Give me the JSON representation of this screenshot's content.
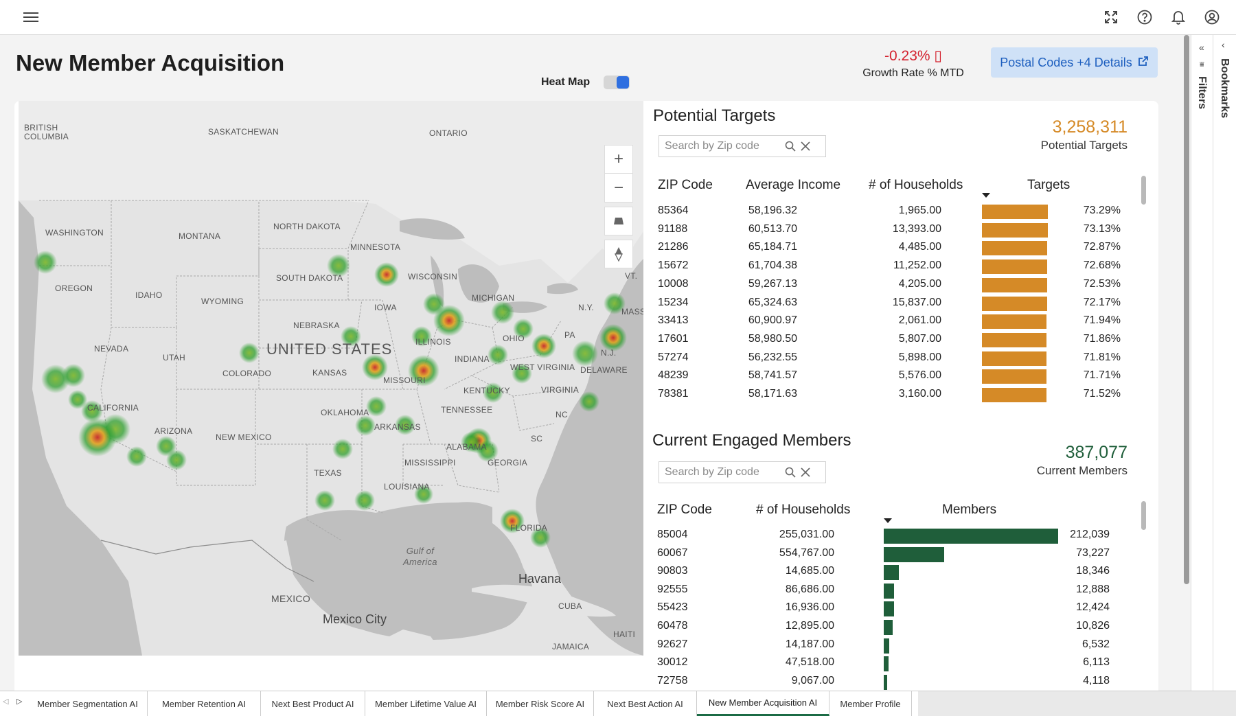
{
  "header": {
    "menu_icon": "hamburger-menu-icon",
    "icons": [
      "fullscreen-icon",
      "help-icon",
      "bell-icon",
      "user-icon"
    ]
  },
  "page": {
    "title": "New Member Acquisition",
    "growth_value": "-0.23% ▯",
    "growth_label": "Growth Rate % MTD",
    "details_button": "Postal Codes +4 Details",
    "details_icon": "external-link-icon"
  },
  "map": {
    "heat_map_label": "Heat Map",
    "heat_map_on": true,
    "labels": {
      "british_columbia": "BRITISH\nCOLUMBIA",
      "saskatchewan": "SASKATCHEWAN",
      "ontario": "ONTARIO",
      "washington": "WASHINGTON",
      "montana": "MONTANA",
      "north_dakota": "NORTH DAKOTA",
      "minnesota": "MINNESOTA",
      "oregon": "OREGON",
      "idaho": "IDAHO",
      "south_dakota": "SOUTH DAKOTA",
      "wisconsin": "WISCONSIN",
      "michigan": "MICHIGAN",
      "vt": "VT.",
      "wyoming": "WYOMING",
      "iowa": "IOWA",
      "ny": "N.Y.",
      "mass": "MASS",
      "nebraska": "NEBRASKA",
      "nevada": "NEVADA",
      "united_states": "UNITED STATES",
      "illinois": "ILLINOIS",
      "ohio": "OHIO",
      "pa": "PA",
      "utah": "UTAH",
      "nj": "N.J.",
      "colorado": "COLORADO",
      "kansas": "KANSAS",
      "indiana": "INDIANA",
      "west_virginia": "WEST VIRGINIA",
      "delaware": "DELAWARE",
      "missouri": "MISSOURI",
      "california": "CALIFORNIA",
      "kentucky": "KENTUCKY",
      "virginia": "VIRGINIA",
      "oklahoma": "OKLAHOMA",
      "tennessee": "TENNESSEE",
      "nc": "NC",
      "arizona": "ARIZONA",
      "arkansas": "ARKANSAS",
      "new_mexico": "NEW MEXICO",
      "sc": "SC",
      "alabama": "ALABAMA",
      "mississippi": "MISSISSIPPI",
      "georgia": "GEORGIA",
      "texas": "TEXAS",
      "louisiana": "LOUISIANA",
      "florida": "FLORIDA",
      "gulf": "Gulf of\nAmerica",
      "havana": "Havana",
      "mexico": "MEXICO",
      "cuba": "CUBA",
      "mexico_city": "Mexico City",
      "haiti": "HAITI",
      "jamaica": "JAMAICA"
    },
    "controls": [
      "zoom-in-icon",
      "zoom-out-icon",
      "tilt-icon",
      "compass-icon"
    ]
  },
  "potential_targets": {
    "title": "Potential Targets",
    "kpi_value": "3,258,311",
    "kpi_label": "Potential Targets",
    "kpi_color": "#d58a27",
    "search_placeholder": "Search by Zip code",
    "columns": [
      "ZIP Code",
      "Average Income",
      "# of Households",
      "Targets"
    ],
    "rows": [
      {
        "zip": "85364",
        "income": "58,196.32",
        "households": "1,965.00",
        "targets": "73.29%",
        "pct": 73.29
      },
      {
        "zip": "91188",
        "income": "60,513.70",
        "households": "13,393.00",
        "targets": "73.13%",
        "pct": 73.13
      },
      {
        "zip": "21286",
        "income": "65,184.71",
        "households": "4,485.00",
        "targets": "72.87%",
        "pct": 72.87
      },
      {
        "zip": "15672",
        "income": "61,704.38",
        "households": "11,252.00",
        "targets": "72.68%",
        "pct": 72.68
      },
      {
        "zip": "10008",
        "income": "59,267.13",
        "households": "4,205.00",
        "targets": "72.53%",
        "pct": 72.53
      },
      {
        "zip": "15234",
        "income": "65,324.63",
        "households": "15,837.00",
        "targets": "72.17%",
        "pct": 72.17
      },
      {
        "zip": "33413",
        "income": "60,900.97",
        "households": "2,061.00",
        "targets": "71.94%",
        "pct": 71.94
      },
      {
        "zip": "17601",
        "income": "58,980.50",
        "households": "5,807.00",
        "targets": "71.86%",
        "pct": 71.86
      },
      {
        "zip": "57274",
        "income": "56,232.55",
        "households": "5,898.00",
        "targets": "71.81%",
        "pct": 71.81
      },
      {
        "zip": "48239",
        "income": "58,741.57",
        "households": "5,576.00",
        "targets": "71.71%",
        "pct": 71.71
      },
      {
        "zip": "78381",
        "income": "58,171.63",
        "households": "3,160.00",
        "targets": "71.52%",
        "pct": 71.52
      }
    ]
  },
  "current_members": {
    "title": "Current Engaged Members",
    "kpi_value": "387,077",
    "kpi_label": "Current Members",
    "kpi_color": "#1f5e3a",
    "search_placeholder": "Search by Zip code",
    "columns": [
      "ZIP Code",
      "# of Households",
      "Members"
    ],
    "rows": [
      {
        "zip": "85004",
        "households": "255,031.00",
        "members": "212,039",
        "value": 212039
      },
      {
        "zip": "60067",
        "households": "554,767.00",
        "members": "73,227",
        "value": 73227
      },
      {
        "zip": "90803",
        "households": "14,685.00",
        "members": "18,346",
        "value": 18346
      },
      {
        "zip": "92555",
        "households": "86,686.00",
        "members": "12,888",
        "value": 12888
      },
      {
        "zip": "55423",
        "households": "16,936.00",
        "members": "12,424",
        "value": 12424
      },
      {
        "zip": "60478",
        "households": "12,895.00",
        "members": "10,826",
        "value": 10826
      },
      {
        "zip": "92627",
        "households": "14,187.00",
        "members": "6,532",
        "value": 6532
      },
      {
        "zip": "30012",
        "households": "47,518.00",
        "members": "6,113",
        "value": 6113
      },
      {
        "zip": "72758",
        "households": "9,067.00",
        "members": "4,118",
        "value": 4118
      }
    ]
  },
  "side_panels": {
    "filters": "Filters",
    "bookmarks": "Bookmarks"
  },
  "tabs": [
    {
      "label": "Member Segmentation AI",
      "active": false
    },
    {
      "label": "Member Retention AI",
      "active": false
    },
    {
      "label": "Next Best Product AI",
      "active": false
    },
    {
      "label": "Member Lifetime Value AI",
      "active": false
    },
    {
      "label": "Member Risk Score AI",
      "active": false
    },
    {
      "label": "Next Best Action AI",
      "active": false
    },
    {
      "label": "New Member Acquisition AI",
      "active": true
    },
    {
      "label": "Member Profile",
      "active": false
    }
  ]
}
